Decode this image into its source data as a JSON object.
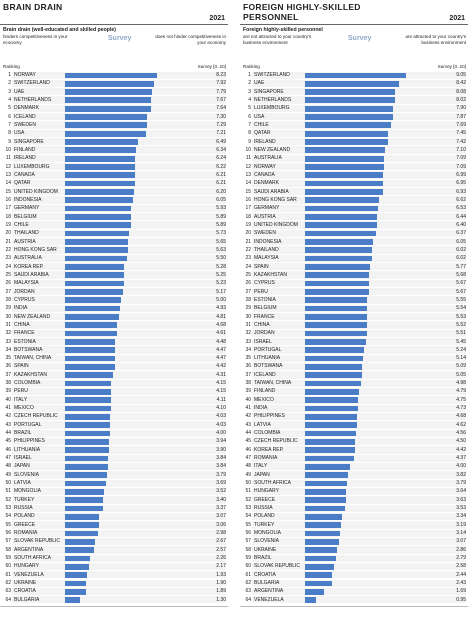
{
  "chart_data": [
    {
      "type": "bar",
      "title": "BRAIN DRAIN",
      "year": "2021",
      "subtitle": "Brain drain (well-educated and skilled people)",
      "low_label": "hinders competitiveness in your economy",
      "high_label": "does not hinder competitiveness in your economy",
      "source_label": "Survey",
      "rank_header": "Ranking",
      "value_header": "Survey [0..10]",
      "color": "#4a7cc7",
      "xlim": [
        0,
        10
      ],
      "ranks": [
        1,
        2,
        3,
        4,
        5,
        6,
        7,
        8,
        9,
        10,
        11,
        12,
        13,
        14,
        15,
        16,
        17,
        18,
        19,
        20,
        21,
        22,
        23,
        24,
        25,
        26,
        27,
        28,
        29,
        30,
        31,
        32,
        33,
        34,
        35,
        36,
        37,
        38,
        39,
        40,
        41,
        42,
        43,
        44,
        45,
        46,
        47,
        48,
        49,
        50,
        51,
        52,
        53,
        54,
        55,
        56,
        57,
        58,
        59,
        60,
        61,
        62,
        63,
        64
      ],
      "categories": [
        "NORWAY",
        "SWITZERLAND",
        "UAE",
        "NETHERLANDS",
        "DENMARK",
        "ICELAND",
        "SWEDEN",
        "USA",
        "SINGAPORE",
        "FINLAND",
        "IRELAND",
        "LUXEMBOURG",
        "CANADA",
        "QATAR",
        "UNITED KINGDOM",
        "INDONESIA",
        "GERMANY",
        "BELGIUM",
        "CHILE",
        "THAILAND",
        "AUSTRIA",
        "HONG KONG SAR",
        "AUSTRALIA",
        "KOREA REP.",
        "SAUDI ARABIA",
        "MALAYSIA",
        "JORDAN",
        "CYPRUS",
        "INDIA",
        "NEW ZEALAND",
        "CHINA",
        "FRANCE",
        "ESTONIA",
        "BOTSWANA",
        "TAIWAN, CHINA",
        "SPAIN",
        "KAZAKHSTAN",
        "COLOMBIA",
        "PERU",
        "ITALY",
        "MEXICO",
        "CZECH REPUBLIC",
        "PORTUGAL",
        "BRAZIL",
        "PHILIPPINES",
        "LITHUANIA",
        "ISRAEL",
        "JAPAN",
        "SLOVENIA",
        "LATVIA",
        "MONGOLIA",
        "TURKEY",
        "RUSSIA",
        "POLAND",
        "GREECE",
        "ROMANIA",
        "SLOVAK REPUBLIC",
        "ARGENTINA",
        "SOUTH AFRICA",
        "HUNGARY",
        "VENEZUELA",
        "UKRAINE",
        "CROATIA",
        "BULGARIA"
      ],
      "values": [
        8.23,
        7.92,
        7.79,
        7.67,
        7.64,
        7.3,
        7.29,
        7.21,
        6.49,
        6.34,
        6.24,
        6.22,
        6.21,
        6.21,
        6.2,
        6.05,
        5.93,
        5.89,
        5.89,
        5.73,
        5.65,
        5.63,
        5.5,
        5.28,
        5.25,
        5.23,
        5.17,
        5.0,
        4.93,
        4.81,
        4.68,
        4.61,
        4.48,
        4.47,
        4.47,
        4.42,
        4.31,
        4.15,
        4.15,
        4.11,
        4.1,
        4.03,
        4.03,
        4.0,
        3.94,
        3.9,
        3.84,
        3.84,
        3.79,
        3.69,
        3.52,
        3.4,
        3.37,
        3.07,
        3.06,
        2.98,
        2.67,
        2.57,
        2.26,
        2.17,
        1.93,
        1.9,
        1.89,
        1.3
      ],
      "value_labels": [
        "8.23",
        "7.92",
        "7.79",
        "7.67",
        "7.64",
        "7.30",
        "7.29",
        "7.21",
        "6.49",
        "6.34",
        "6.24",
        "6.22",
        "6.21",
        "6.21",
        "6.20",
        "6.05",
        "5.93",
        "5.89",
        "5.89",
        "5.73",
        "5.65",
        "5.63",
        "5.50",
        "5.28",
        "5.25",
        "5.23",
        "5.17",
        "5.00",
        "4.93",
        "4.81",
        "4.68",
        "4.61",
        "4.48",
        "4.47",
        "4.47",
        "4.42",
        "4.31",
        "4.15",
        "4.15",
        "4.11",
        "4.10",
        "4.03",
        "4.03",
        "4.00",
        "3.94",
        "3.90",
        "3.84",
        "3.84",
        "3.79",
        "3.69",
        "3.52",
        "3.40",
        "3.37",
        "3.07",
        "3.06",
        "2.98",
        "2.67",
        "2.57",
        "2.26",
        "2.17",
        "1.93",
        "1.90",
        "1.89",
        "1.30"
      ]
    },
    {
      "type": "bar",
      "title": "FOREIGN HIGHLY-SKILLED PERSONNEL",
      "year": "2021",
      "subtitle": "Foreign highly-skilled personnel",
      "low_label": "are not attracted to your country's business environment",
      "high_label": "are attracted to your country's business environment",
      "source_label": "Survey",
      "rank_header": "Ranking",
      "value_header": "Survey [0..10]",
      "color": "#4a7cc7",
      "xlim": [
        0,
        10
      ],
      "ranks": [
        1,
        2,
        3,
        4,
        5,
        6,
        7,
        8,
        9,
        10,
        11,
        12,
        13,
        14,
        15,
        16,
        17,
        18,
        19,
        20,
        21,
        22,
        23,
        24,
        25,
        26,
        27,
        28,
        29,
        30,
        31,
        32,
        33,
        34,
        35,
        36,
        37,
        38,
        39,
        40,
        41,
        42,
        43,
        44,
        45,
        46,
        47,
        48,
        49,
        50,
        51,
        52,
        53,
        54,
        55,
        56,
        57,
        58,
        59,
        60,
        61,
        62,
        63,
        64
      ],
      "categories": [
        "SWITZERLAND",
        "UAE",
        "SINGAPORE",
        "NETHERLANDS",
        "LUXEMBOURG",
        "USA",
        "CHILE",
        "QATAR",
        "IRELAND",
        "NEW ZEALAND",
        "AUSTRALIA",
        "NORWAY",
        "CANADA",
        "DENMARK",
        "SAUDI ARABIA",
        "HONG KONG SAR",
        "GERMANY",
        "AUSTRIA",
        "UNITED KINGDOM",
        "SWEDEN",
        "INDONESIA",
        "THAILAND",
        "MALAYSIA",
        "SPAIN",
        "KAZAKHSTAN",
        "CYPRUS",
        "PERU",
        "ESTONIA",
        "BELGIUM",
        "FRANCE",
        "CHINA",
        "JORDAN",
        "ISRAEL",
        "PORTUGAL",
        "LITHUANIA",
        "BOTSWANA",
        "ICELAND",
        "TAIWAN, CHINA",
        "FINLAND",
        "MEXICO",
        "INDIA",
        "PHILIPPINES",
        "LATVIA",
        "COLOMBIA",
        "CZECH REPUBLIC",
        "KOREA REP.",
        "ROMANIA",
        "ITALY",
        "JAPAN",
        "SOUTH AFRICA",
        "HUNGARY",
        "GREECE",
        "RUSSIA",
        "POLAND",
        "TURKEY",
        "MONGOLIA",
        "SLOVENIA",
        "UKRAINE",
        "BRAZIL",
        "SLOVAK REPUBLIC",
        "CROATIA",
        "BULGARIA",
        "ARGENTINA",
        "VENEZUELA"
      ],
      "values": [
        9.05,
        8.42,
        8.08,
        8.02,
        7.9,
        7.87,
        7.69,
        7.45,
        7.42,
        7.1,
        7.09,
        7.09,
        6.99,
        6.95,
        6.93,
        6.62,
        6.53,
        6.44,
        6.4,
        6.37,
        6.05,
        6.02,
        6.02,
        5.77,
        5.68,
        5.67,
        5.67,
        5.55,
        5.54,
        5.53,
        5.52,
        5.51,
        5.45,
        5.24,
        5.14,
        5.09,
        5.05,
        4.98,
        4.79,
        4.75,
        4.73,
        4.68,
        4.62,
        4.56,
        4.5,
        4.42,
        4.37,
        4.0,
        3.82,
        3.79,
        3.64,
        3.63,
        3.53,
        3.34,
        3.19,
        3.14,
        3.07,
        2.86,
        2.79,
        2.58,
        2.44,
        2.43,
        1.69,
        0.95
      ],
      "value_labels": [
        "9.05",
        "8.42",
        "8.08",
        "8.02",
        "7.90",
        "7.87",
        "7.69",
        "7.45",
        "7.42",
        "7.10",
        "7.09",
        "7.09",
        "6.99",
        "6.95",
        "6.93",
        "6.62",
        "6.53",
        "6.44",
        "6.40",
        "6.37",
        "6.05",
        "6.02",
        "6.02",
        "5.77",
        "5.68",
        "5.67",
        "5.67",
        "5.55",
        "5.54",
        "5.53",
        "5.52",
        "5.51",
        "5.45",
        "5.24",
        "5.14",
        "5.09",
        "5.05",
        "4.98",
        "4.79",
        "4.75",
        "4.73",
        "4.68",
        "4.62",
        "4.56",
        "4.50",
        "4.42",
        "4.37",
        "4.00",
        "3.82",
        "3.79",
        "3.64",
        "3.63",
        "3.53",
        "3.34",
        "3.19",
        "3.14",
        "3.07",
        "2.86",
        "2.79",
        "2.58",
        "2.44",
        "2.43",
        "1.69",
        "0.95"
      ]
    }
  ]
}
